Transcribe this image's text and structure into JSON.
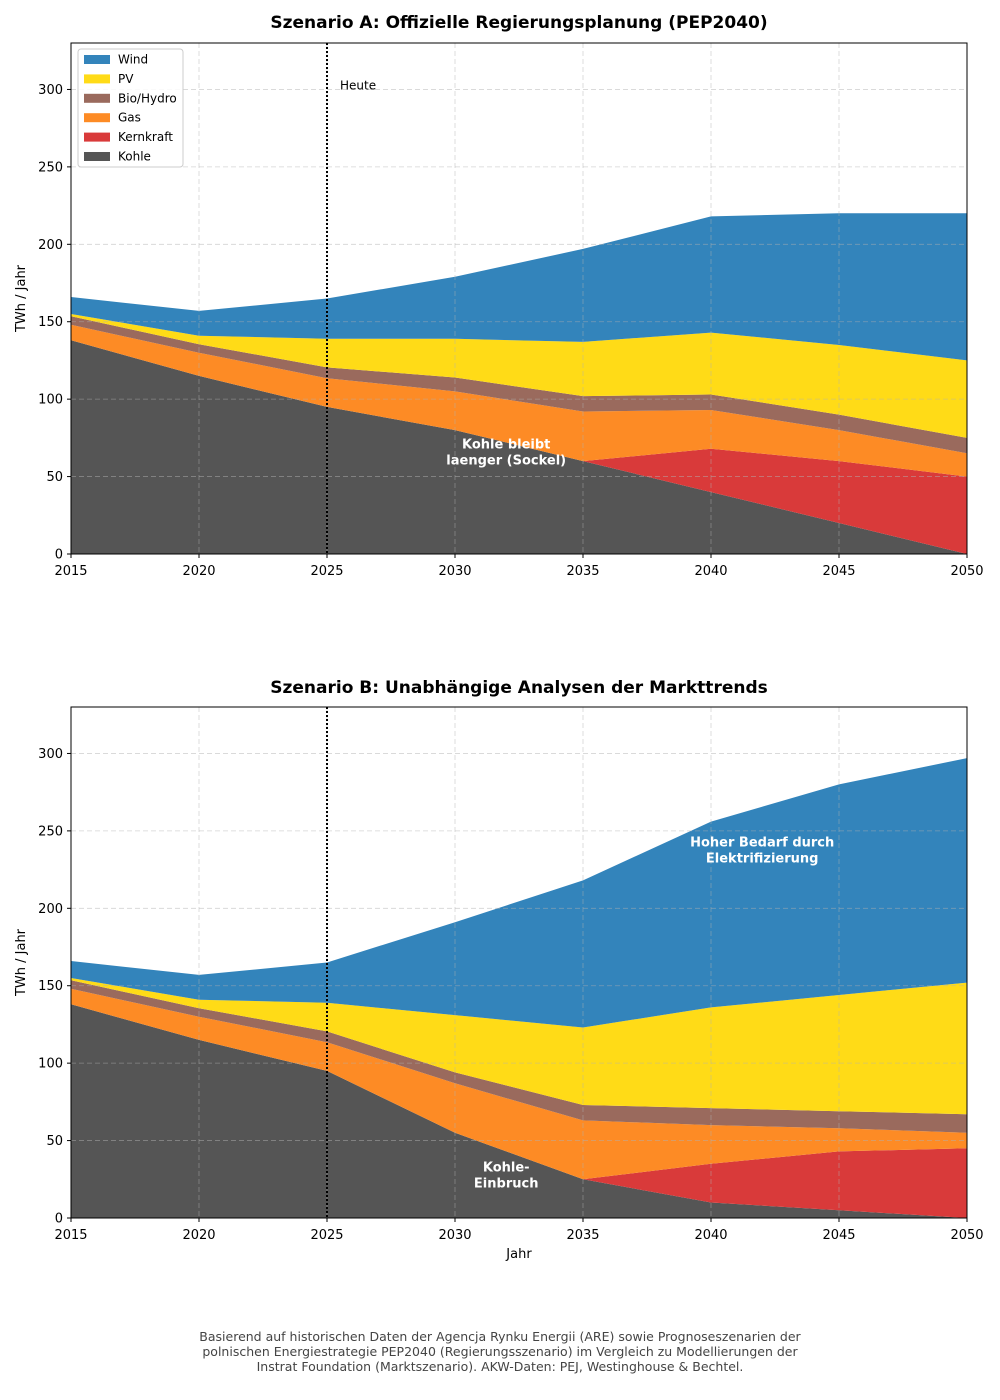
{
  "chart_data": [
    {
      "type": "area",
      "stacked": true,
      "title": "Szenario A: Offizielle Regierungsplanung (PEP2040)",
      "xlabel": "",
      "ylabel": "TWh / Jahr",
      "x": [
        2015,
        2020,
        2025,
        2030,
        2035,
        2040,
        2045,
        2050
      ],
      "xticks": [
        "2015",
        "2020",
        "2025",
        "2030",
        "2035",
        "2040",
        "2045",
        "2050"
      ],
      "yticks": [
        "0",
        "50",
        "100",
        "150",
        "200",
        "250",
        "300"
      ],
      "ytick_values": [
        0,
        50,
        100,
        150,
        200,
        250,
        300
      ],
      "xlim": [
        2015,
        2050
      ],
      "ylim": [
        0,
        330
      ],
      "grid": true,
      "legend_position": "top-left",
      "series": [
        {
          "name": "Kohle",
          "color": "#555555",
          "values": [
            138,
            115,
            95,
            80,
            60,
            40,
            20,
            0
          ]
        },
        {
          "name": "Kernkraft",
          "color": "#d93a3a",
          "values": [
            0,
            0,
            0,
            0,
            0,
            28,
            40,
            50
          ]
        },
        {
          "name": "Gas",
          "color": "#fd8b25",
          "values": [
            10,
            15,
            18.5,
            25,
            32,
            25,
            20,
            15
          ]
        },
        {
          "name": "Bio/Hydro",
          "color": "#9a6a5d",
          "values": [
            5.5,
            5.5,
            7,
            9,
            10,
            10,
            10,
            10
          ]
        },
        {
          "name": "PV",
          "color": "#ffdb17",
          "values": [
            1.5,
            5.5,
            18.5,
            25,
            35,
            40,
            45,
            50
          ]
        },
        {
          "name": "Wind",
          "color": "#3384bb",
          "values": [
            11,
            16,
            26,
            40,
            60,
            75,
            85,
            95
          ]
        }
      ],
      "vline": {
        "x": 2025,
        "label": "Heute"
      },
      "annotations": [
        {
          "text_lines": [
            "Kohle bleibt",
            "laenger (Sockel)"
          ],
          "x": 2032,
          "y": 68
        }
      ]
    },
    {
      "type": "area",
      "stacked": true,
      "title": "Szenario B: Unabhängige Analysen der Markttrends",
      "xlabel": "Jahr",
      "ylabel": "TWh / Jahr",
      "x": [
        2015,
        2020,
        2025,
        2030,
        2035,
        2040,
        2045,
        2050
      ],
      "xticks": [
        "2015",
        "2020",
        "2025",
        "2030",
        "2035",
        "2040",
        "2045",
        "2050"
      ],
      "yticks": [
        "0",
        "50",
        "100",
        "150",
        "200",
        "250",
        "300"
      ],
      "ytick_values": [
        0,
        50,
        100,
        150,
        200,
        250,
        300
      ],
      "xlim": [
        2015,
        2050
      ],
      "ylim": [
        0,
        330
      ],
      "grid": true,
      "series": [
        {
          "name": "Kohle",
          "color": "#555555",
          "values": [
            138,
            115,
            95,
            55,
            25,
            10,
            5,
            0
          ]
        },
        {
          "name": "Kernkraft",
          "color": "#d93a3a",
          "values": [
            0,
            0,
            0,
            0,
            0,
            25,
            38,
            45
          ]
        },
        {
          "name": "Gas",
          "color": "#fd8b25",
          "values": [
            10,
            15,
            18.5,
            32,
            38,
            25,
            15,
            10
          ]
        },
        {
          "name": "Bio/Hydro",
          "color": "#9a6a5d",
          "values": [
            5.5,
            5.5,
            7,
            7,
            10,
            11,
            11,
            12
          ]
        },
        {
          "name": "PV",
          "color": "#ffdb17",
          "values": [
            1.5,
            5.5,
            18.5,
            37,
            50,
            65,
            75,
            85
          ]
        },
        {
          "name": "Wind",
          "color": "#3384bb",
          "values": [
            11,
            16,
            26,
            60,
            95,
            120,
            136,
            145
          ]
        }
      ],
      "vline": {
        "x": 2025,
        "label": ""
      },
      "annotations": [
        {
          "text_lines": [
            "Kohle-",
            "Einbruch"
          ],
          "x": 2032,
          "y": 30
        },
        {
          "text_lines": [
            "Hoher Bedarf durch",
            "Elektrifizierung"
          ],
          "x": 2042,
          "y": 240
        }
      ]
    }
  ],
  "legend": {
    "items": [
      {
        "label": "Wind",
        "color": "#3384bb"
      },
      {
        "label": "PV",
        "color": "#ffdb17"
      },
      {
        "label": "Bio/Hydro",
        "color": "#9a6a5d"
      },
      {
        "label": "Gas",
        "color": "#fd8b25"
      },
      {
        "label": "Kernkraft",
        "color": "#d93a3a"
      },
      {
        "label": "Kohle",
        "color": "#555555"
      }
    ]
  },
  "footer": {
    "lines": [
      "Basierend auf historischen Daten der Agencja Rynku Energii (ARE) sowie Prognoseszenarien der",
      "polnischen Energiestrategie PEP2040 (Regierungsszenario) im Vergleich zu Modellierungen der",
      "Instrat Foundation (Marktszenario). AKW-Daten: PEJ, Westinghouse & Bechtel."
    ]
  }
}
